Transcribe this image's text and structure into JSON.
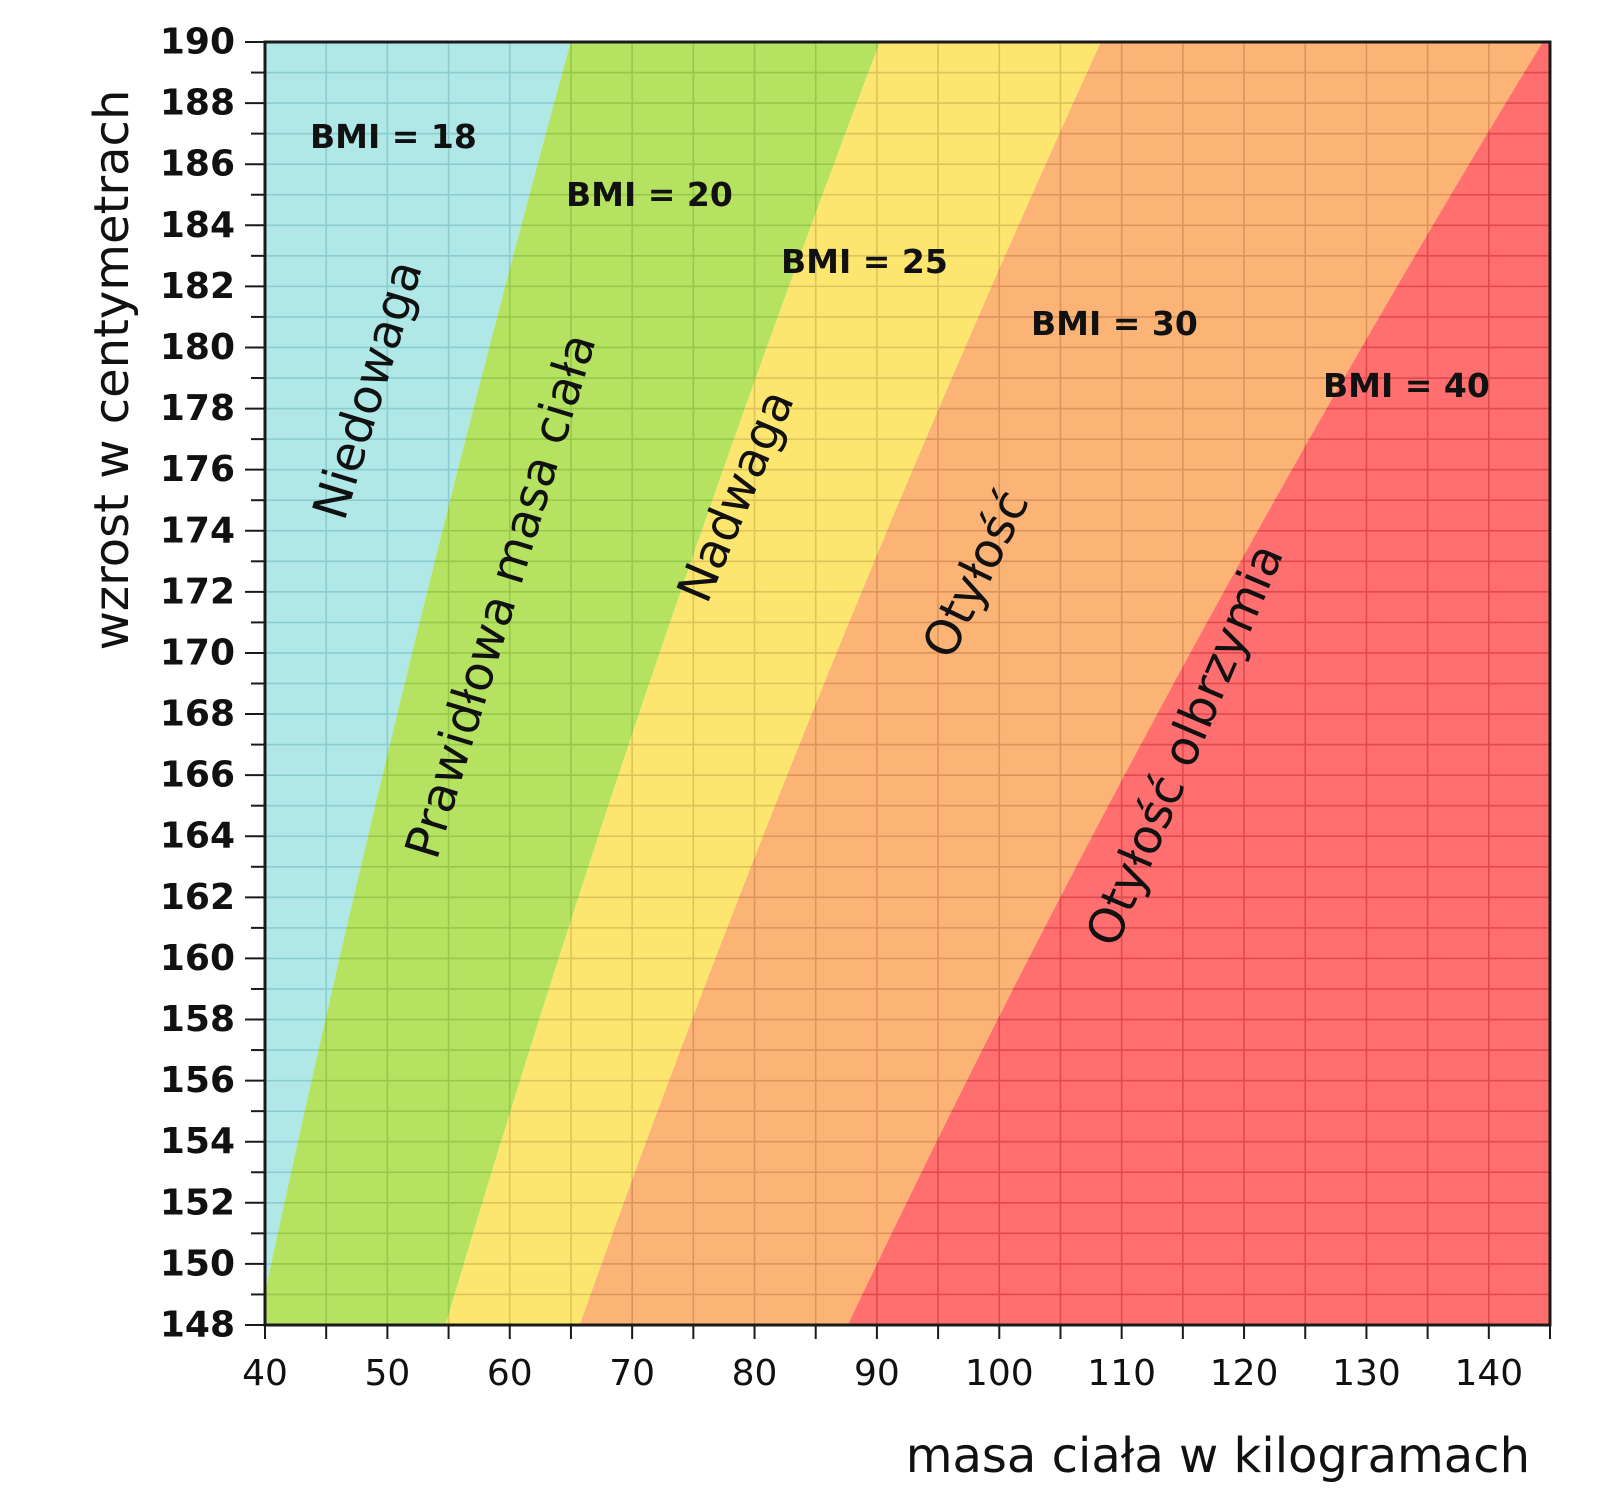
{
  "chart_data": {
    "type": "area",
    "title": "",
    "xlabel": "masa ciała w kilogramach",
    "ylabel": "wzrost w centymetrach",
    "xlim": [
      40,
      145
    ],
    "ylim": [
      148,
      190
    ],
    "x_ticks": [
      40,
      50,
      60,
      70,
      80,
      90,
      100,
      110,
      120,
      130,
      140
    ],
    "y_ticks": [
      148,
      150,
      152,
      154,
      156,
      158,
      160,
      162,
      164,
      166,
      168,
      170,
      172,
      174,
      176,
      178,
      180,
      182,
      184,
      186,
      188,
      190
    ],
    "x_grid_step": 5,
    "y_grid_step": 1,
    "grid": true,
    "bmi_boundaries": [
      {
        "bmi": 18,
        "label": "BMI = 18"
      },
      {
        "bmi": 20,
        "label": "BMI = 20"
      },
      {
        "bmi": 25,
        "label": "BMI = 25"
      },
      {
        "bmi": 30,
        "label": "BMI = 30"
      },
      {
        "bmi": 40,
        "label": "BMI = 40"
      }
    ],
    "zones": [
      {
        "name": "Niedowaga",
        "bmi_min": 0,
        "bmi_max": 18,
        "color": "#b0e8e8",
        "grid_color": "#8ccccf"
      },
      {
        "name": "Prawidłowa masa ciała",
        "bmi_min": 18,
        "bmi_max": 25,
        "color": "#b5e261",
        "grid_color": "#96c84a"
      },
      {
        "name": "Nadwaga",
        "bmi_min": 25,
        "bmi_max": 30,
        "color": "#fde66f",
        "grid_color": "#ddc35a"
      },
      {
        "name": "Otyłość",
        "bmi_min": 30,
        "bmi_max": 40,
        "color": "#fcb476",
        "grid_color": "#dc935c"
      },
      {
        "name": "Otyłość olbrzymia",
        "bmi_min": 40,
        "bmi_max": 1000,
        "color": "#ff6f6f",
        "grid_color": "#e04a4e"
      }
    ]
  }
}
